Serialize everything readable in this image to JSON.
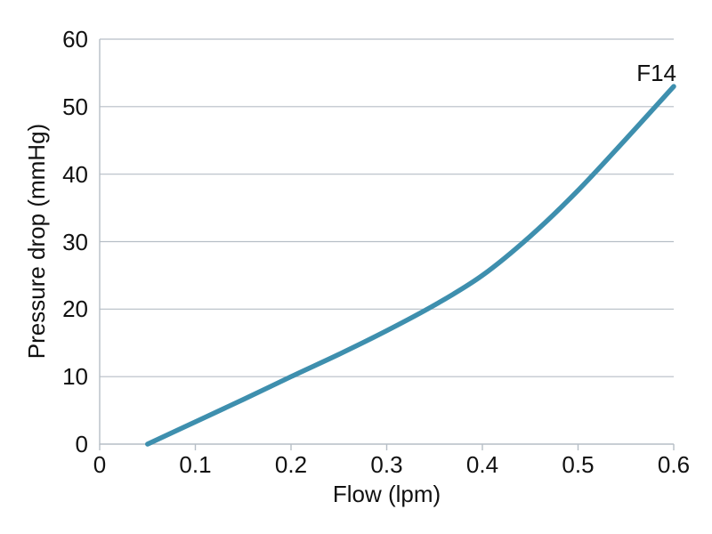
{
  "chart_data": {
    "type": "line",
    "title": "",
    "xlabel": "Flow (lpm)",
    "ylabel": "Pressure drop (mmHg)",
    "xlim": [
      0,
      0.6
    ],
    "ylim": [
      0,
      60
    ],
    "xticks": [
      0,
      0.1,
      0.2,
      0.3,
      0.4,
      0.5,
      0.6
    ],
    "xtick_labels": [
      "0",
      "0.1",
      "0.2",
      "0.3",
      "0.4",
      "0.5",
      "0.6"
    ],
    "yticks": [
      0,
      10,
      20,
      30,
      40,
      50,
      60
    ],
    "ytick_labels": [
      "0",
      "10",
      "20",
      "30",
      "40",
      "50",
      "60"
    ],
    "grid": "horizontal-only",
    "legend": "none",
    "series": [
      {
        "name": "F14",
        "x": [
          0.05,
          0.1,
          0.15,
          0.2,
          0.25,
          0.3,
          0.35,
          0.4,
          0.45,
          0.5,
          0.55,
          0.6
        ],
        "y": [
          0,
          3.3,
          6.6,
          10,
          13.3,
          16.8,
          20.6,
          25,
          30.8,
          37.6,
          45.2,
          53
        ]
      }
    ],
    "annotation": {
      "text": "F14",
      "anchor_x": 0.6,
      "anchor_y": 56
    },
    "colors": {
      "series": "#3e8fae",
      "gridline": "#b6bec6",
      "axis": "#b6bec6",
      "text": "#111111",
      "background": "#ffffff"
    }
  }
}
